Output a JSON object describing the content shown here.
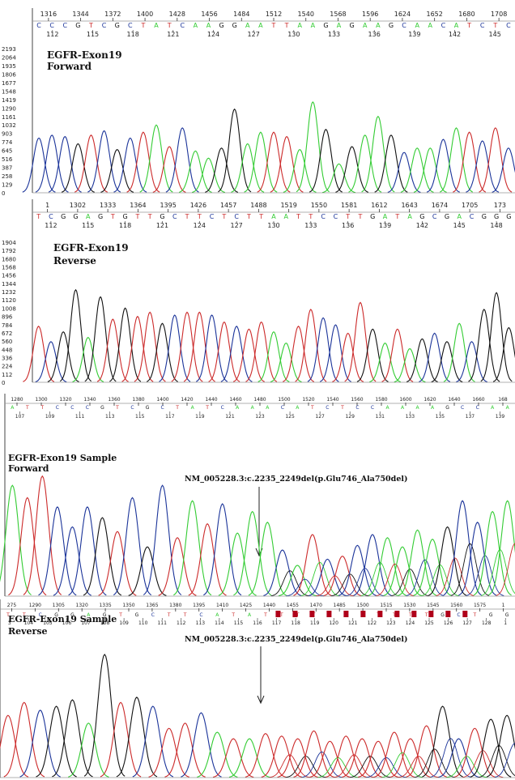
{
  "panels": [
    {
      "id": "ref-forward",
      "title_lines": [
        "EGFR-Exon19",
        "Forward"
      ],
      "scale_ticks": [
        "1316",
        "1344",
        "1372",
        "1400",
        "1428",
        "1456",
        "1484",
        "1512",
        "1540",
        "1568",
        "1596",
        "1624",
        "1652",
        "1680",
        "1708"
      ],
      "bases": "CCCGTCGCTATCAAGGAATTAAGAGAAGCAACATCTC",
      "pos_labels": [
        "112",
        "115",
        "118",
        "121",
        "124",
        "127",
        "130",
        "133",
        "136",
        "139",
        "142",
        "145"
      ],
      "y_ticks": [
        "2193",
        "2064",
        "1935",
        "1806",
        "1677",
        "1548",
        "1419",
        "1290",
        "1161",
        "1032",
        "903",
        "774",
        "645",
        "516",
        "387",
        "258",
        "129",
        "0"
      ],
      "peak_heights": [
        0.38,
        0.4,
        0.39,
        0.34,
        0.4,
        0.43,
        0.3,
        0.38,
        0.42,
        0.47,
        0.32,
        0.45,
        0.29,
        0.24,
        0.31,
        0.58,
        0.34,
        0.42,
        0.42,
        0.39,
        0.3,
        0.63,
        0.44,
        0.2,
        0.32,
        0.4,
        0.53,
        0.4,
        0.28,
        0.31,
        0.31,
        0.37,
        0.45,
        0.42,
        0.36,
        0.45,
        0.31
      ]
    },
    {
      "id": "ref-reverse",
      "title_lines": [
        "EGFR-Exon19",
        "Reverse"
      ],
      "scale_ticks": [
        "1",
        "1302",
        "1333",
        "1364",
        "1395",
        "1426",
        "1457",
        "1488",
        "1519",
        "1550",
        "1581",
        "1612",
        "1643",
        "1674",
        "1705",
        "173"
      ],
      "bases": "TCGGAGTGTTGCTTCTCTTAATTCCTTGATAGCGACGGG",
      "pos_labels": [
        "112",
        "115",
        "118",
        "121",
        "124",
        "127",
        "130",
        "133",
        "136",
        "139",
        "142",
        "145",
        "148"
      ],
      "y_ticks": [
        "1904",
        "1792",
        "1680",
        "1568",
        "1456",
        "1344",
        "1232",
        "1120",
        "1008",
        "896",
        "784",
        "672",
        "560",
        "448",
        "336",
        "224",
        "112",
        "0"
      ],
      "peak_heights": [
        0.4,
        0.29,
        0.36,
        0.66,
        0.32,
        0.61,
        0.45,
        0.53,
        0.47,
        0.5,
        0.42,
        0.48,
        0.5,
        0.5,
        0.48,
        0.43,
        0.4,
        0.38,
        0.43,
        0.36,
        0.28,
        0.4,
        0.52,
        0.46,
        0.41,
        0.35,
        0.57,
        0.38,
        0.28,
        0.38,
        0.24,
        0.31,
        0.35,
        0.29,
        0.42,
        0.29,
        0.52,
        0.64,
        0.39
      ]
    },
    {
      "id": "sample-forward",
      "title_lines": [
        "EGFR-Exon19 Sample",
        "Forward"
      ],
      "annotation": "NM_005228.3:c.2235_2249del(p.Glu746_Ala750del)",
      "scale_ticks": [
        "1280",
        "1300",
        "1320",
        "1340",
        "1360",
        "1380",
        "1400",
        "1420",
        "1440",
        "1460",
        "1480",
        "1500",
        "1520",
        "1540",
        "1560",
        "1580",
        "1600",
        "1620",
        "1640",
        "1660",
        "168"
      ],
      "bases": "ATTCCCGTCGCTATCAAACATCTCCAAAAGCCAA",
      "pos_labels": [
        "107",
        "109",
        "111",
        "113",
        "115",
        "117",
        "119",
        "121",
        "123",
        "125",
        "127",
        "129",
        "131",
        "133",
        "135",
        "137",
        "139"
      ],
      "peak_heights": [
        0.72,
        0.64,
        0.78,
        0.58,
        0.45,
        0.58,
        0.51,
        0.42,
        0.64,
        0.32,
        0.72,
        0.38,
        0.62,
        0.47,
        0.6,
        0.41,
        0.55,
        0.48,
        0.3,
        0.2,
        0.4,
        0.24,
        0.26,
        0.33,
        0.4,
        0.38,
        0.32,
        0.43,
        0.37,
        0.45,
        0.62,
        0.48,
        0.55,
        0.62
      ],
      "trace_end": "Forward"
    },
    {
      "id": "sample-reverse",
      "title_lines": [
        "EGFR-Exon19 Sample",
        "Reverse"
      ],
      "annotation": "NM_005228.3:c.2235_2249del(p.Glu746_Ala750del)",
      "scale_ticks": [
        "275",
        "1290",
        "1305",
        "1320",
        "1335",
        "1350",
        "1365",
        "1380",
        "1395",
        "1410",
        "1425",
        "1440",
        "1455",
        "1470",
        "1485",
        "1500",
        "1515",
        "1530",
        "1545",
        "1560",
        "1575",
        "1"
      ],
      "bases": "TTCGGAGTGCTTCATATTTTTTTTTTTGCTGG",
      "pos_labels": [
        "3",
        "104",
        "105",
        "106",
        "107",
        "108",
        "109",
        "110",
        "111",
        "112",
        "113",
        "114",
        "115",
        "116",
        "117",
        "118",
        "119",
        "120",
        "121",
        "122",
        "123",
        "124",
        "125",
        "126",
        "127",
        "128",
        "1"
      ],
      "peak_heights": [
        0.48,
        0.58,
        0.52,
        0.55,
        0.6,
        0.42,
        0.95,
        0.58,
        0.62,
        0.55,
        0.38,
        0.42,
        0.5,
        0.35,
        0.3,
        0.3,
        0.34,
        0.32,
        0.3,
        0.36,
        0.28,
        0.32,
        0.3,
        0.28,
        0.35,
        0.3,
        0.4,
        0.55,
        0.3,
        0.38,
        0.45,
        0.48
      ]
    }
  ],
  "colors": {
    "A": "#33cc33",
    "C": "#1a3399",
    "G": "#111111",
    "T": "#cc2a2a",
    "marker": "#b0001a"
  }
}
